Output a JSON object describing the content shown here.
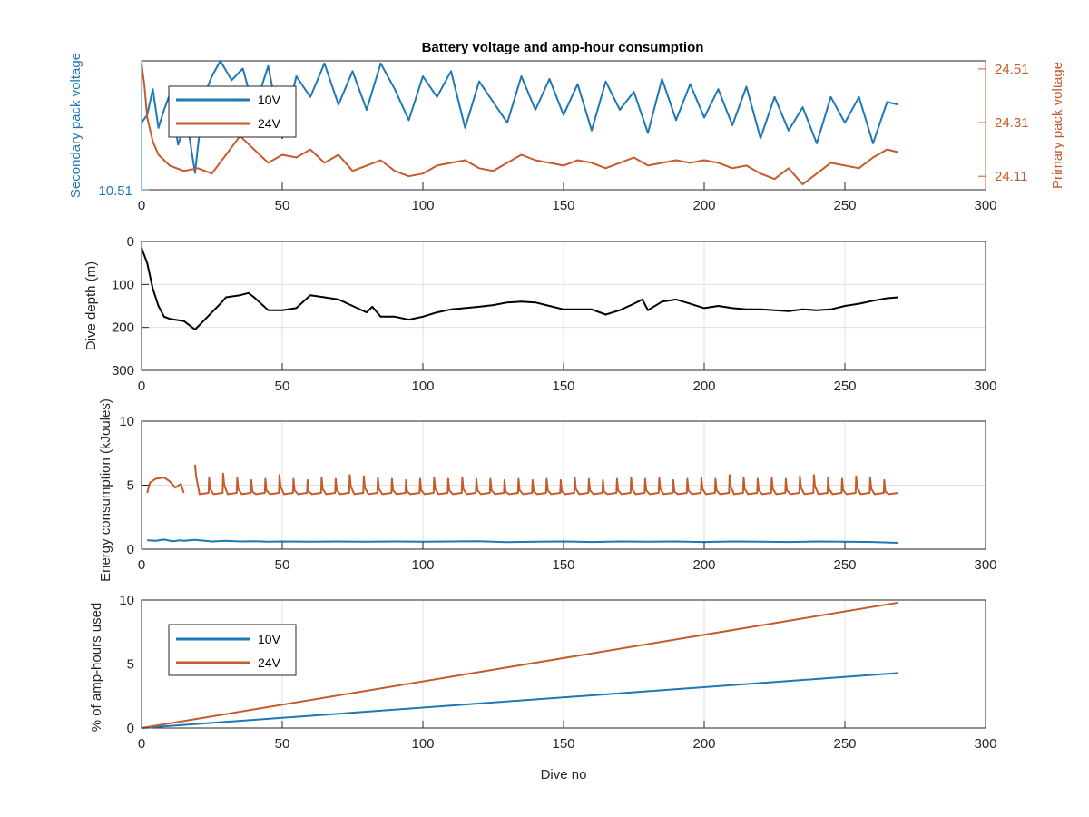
{
  "colors": {
    "series_10v": "#1f77b4",
    "series_24v": "#c55a2a",
    "depth": "#000000",
    "axis": "#262626",
    "grid": "#e0e0e0"
  },
  "xlabel_shared": "Dive no",
  "chart_data": [
    {
      "type": "line",
      "title": "Battery voltage and amp-hour consumption",
      "ylabel_left": "Secondary pack voltage",
      "ylabel_right": "Primary pack voltage",
      "xlim": [
        0,
        300
      ],
      "x_ticks": [
        "0",
        "50",
        "100",
        "150",
        "200",
        "250",
        "300"
      ],
      "y_left_ticks": [
        "10.51"
      ],
      "y_right_ticks": [
        "24.51",
        "24.31",
        "24.11"
      ],
      "legend": {
        "position": "top-left",
        "entries": [
          "10V",
          "24V"
        ]
      },
      "grid": false,
      "series": [
        {
          "name": "10V",
          "axis": "left",
          "x": [
            0,
            2,
            4,
            6,
            8,
            10,
            13,
            16,
            19,
            22,
            25,
            28,
            32,
            36,
            40,
            45,
            50,
            55,
            60,
            65,
            70,
            75,
            80,
            85,
            90,
            95,
            100,
            105,
            110,
            115,
            120,
            125,
            130,
            135,
            140,
            145,
            150,
            155,
            160,
            165,
            170,
            175,
            180,
            185,
            190,
            195,
            200,
            205,
            210,
            215,
            220,
            225,
            230,
            235,
            240,
            245,
            250,
            255,
            260,
            265,
            269
          ],
          "values": [
            0.52,
            0.58,
            0.78,
            0.48,
            0.62,
            0.74,
            0.35,
            0.55,
            0.13,
            0.72,
            0.88,
            1.0,
            0.85,
            0.94,
            0.62,
            0.96,
            0.4,
            0.88,
            0.72,
            0.98,
            0.66,
            0.92,
            0.62,
            0.98,
            0.78,
            0.54,
            0.88,
            0.72,
            0.92,
            0.48,
            0.84,
            0.68,
            0.52,
            0.88,
            0.62,
            0.86,
            0.58,
            0.82,
            0.46,
            0.84,
            0.62,
            0.76,
            0.44,
            0.86,
            0.54,
            0.82,
            0.56,
            0.78,
            0.5,
            0.8,
            0.4,
            0.72,
            0.46,
            0.64,
            0.36,
            0.72,
            0.52,
            0.72,
            0.36,
            0.68,
            0.66
          ]
        },
        {
          "name": "24V",
          "axis": "right",
          "x": [
            0,
            1,
            2,
            4,
            6,
            10,
            15,
            20,
            25,
            30,
            35,
            40,
            45,
            50,
            55,
            60,
            65,
            70,
            75,
            80,
            85,
            90,
            95,
            100,
            105,
            110,
            115,
            120,
            125,
            130,
            135,
            140,
            145,
            150,
            155,
            160,
            165,
            170,
            175,
            180,
            185,
            190,
            195,
            200,
            205,
            210,
            215,
            220,
            225,
            230,
            235,
            240,
            245,
            250,
            255,
            260,
            265,
            269
          ],
          "values": [
            24.53,
            24.45,
            24.33,
            24.24,
            24.19,
            24.15,
            24.13,
            24.14,
            24.12,
            24.19,
            24.26,
            24.21,
            24.16,
            24.19,
            24.18,
            24.21,
            24.16,
            24.19,
            24.13,
            24.15,
            24.17,
            24.13,
            24.11,
            24.12,
            24.15,
            24.16,
            24.17,
            24.14,
            24.13,
            24.16,
            24.19,
            24.17,
            24.16,
            24.15,
            24.17,
            24.16,
            24.14,
            24.16,
            24.18,
            24.15,
            24.16,
            24.17,
            24.16,
            24.17,
            24.16,
            24.14,
            24.15,
            24.12,
            24.1,
            24.14,
            24.08,
            24.12,
            24.16,
            24.15,
            24.14,
            24.18,
            24.21,
            24.2
          ]
        }
      ]
    },
    {
      "type": "line",
      "ylabel": "Dive depth (m)",
      "xlim": [
        0,
        300
      ],
      "ylim": [
        0,
        300
      ],
      "y_reversed": true,
      "x_ticks": [
        "0",
        "50",
        "100",
        "150",
        "200",
        "250",
        "300"
      ],
      "y_ticks": [
        "0",
        "100",
        "200",
        "300"
      ],
      "grid": true,
      "series": [
        {
          "x": [
            0,
            2,
            4,
            6,
            8,
            10,
            15,
            19,
            22,
            25,
            28,
            30,
            35,
            38,
            40,
            45,
            50,
            55,
            60,
            65,
            70,
            75,
            80,
            82,
            85,
            90,
            95,
            100,
            105,
            110,
            115,
            120,
            125,
            130,
            135,
            140,
            145,
            150,
            155,
            160,
            165,
            170,
            175,
            178,
            180,
            185,
            190,
            195,
            200,
            205,
            210,
            215,
            220,
            225,
            230,
            235,
            240,
            245,
            250,
            255,
            260,
            265,
            269
          ],
          "values": [
            15,
            50,
            110,
            150,
            175,
            180,
            185,
            205,
            185,
            165,
            145,
            130,
            125,
            120,
            130,
            160,
            160,
            155,
            125,
            130,
            135,
            150,
            165,
            152,
            175,
            175,
            182,
            175,
            165,
            158,
            155,
            152,
            148,
            142,
            140,
            142,
            150,
            158,
            158,
            158,
            170,
            160,
            145,
            135,
            160,
            140,
            135,
            145,
            155,
            150,
            155,
            158,
            158,
            160,
            162,
            158,
            160,
            158,
            150,
            145,
            138,
            132,
            130
          ]
        }
      ]
    },
    {
      "type": "line",
      "ylabel": "Energy consumption (kJoules)",
      "xlim": [
        0,
        300
      ],
      "ylim": [
        0,
        10
      ],
      "x_ticks": [
        "0",
        "50",
        "100",
        "150",
        "200",
        "250",
        "300"
      ],
      "y_ticks": [
        "0",
        "5",
        "10"
      ],
      "grid": true,
      "series": [
        {
          "name": "10V",
          "x": [
            2,
            5,
            8,
            11,
            14,
            15,
            19,
            25,
            30,
            35,
            40,
            45,
            50,
            60,
            70,
            80,
            90,
            100,
            110,
            120,
            130,
            140,
            150,
            160,
            170,
            180,
            190,
            200,
            210,
            220,
            230,
            240,
            250,
            260,
            269
          ],
          "values": [
            0.7,
            0.65,
            0.75,
            0.62,
            0.7,
            0.65,
            0.72,
            0.6,
            0.65,
            0.6,
            0.62,
            0.58,
            0.6,
            0.58,
            0.6,
            0.58,
            0.6,
            0.58,
            0.6,
            0.62,
            0.55,
            0.58,
            0.6,
            0.56,
            0.6,
            0.58,
            0.6,
            0.56,
            0.6,
            0.58,
            0.56,
            0.6,
            0.58,
            0.56,
            0.5
          ]
        },
        {
          "name": "24V",
          "x": [
            2,
            3,
            5,
            8,
            10,
            12,
            14,
            15
          ],
          "values": [
            4.4,
            5.2,
            5.5,
            5.6,
            5.3,
            4.8,
            5.1,
            4.4
          ],
          "spikes": {
            "start": 19,
            "end": 269,
            "period": 5,
            "base": 4.3,
            "peaks": [
              6.6,
              5.6,
              5.9,
              5.6,
              5.4,
              5.5,
              5.8,
              5.5,
              5.4,
              5.6,
              5.5,
              5.8,
              5.7,
              5.6,
              5.5,
              5.4,
              5.5,
              5.6,
              5.5,
              5.6,
              5.5,
              5.5,
              5.4,
              5.5,
              5.4,
              5.5,
              5.4,
              5.6,
              5.5,
              5.4,
              5.5,
              5.6,
              5.5,
              5.6,
              5.4,
              5.5,
              5.6,
              5.5,
              5.8,
              5.6,
              5.5,
              5.6,
              5.5,
              5.7,
              5.8,
              5.6,
              5.5,
              5.7,
              5.6,
              5.4
            ]
          }
        }
      ]
    },
    {
      "type": "line",
      "ylabel": "% of amp-hours used",
      "xlabel": "Dive no",
      "xlim": [
        0,
        300
      ],
      "ylim": [
        0,
        10
      ],
      "x_ticks": [
        "0",
        "50",
        "100",
        "150",
        "200",
        "250",
        "300"
      ],
      "y_ticks": [
        "0",
        "5",
        "10"
      ],
      "legend": {
        "position": "top-left",
        "entries": [
          "10V",
          "24V"
        ]
      },
      "grid": true,
      "series": [
        {
          "name": "10V",
          "x": [
            0,
            269
          ],
          "values": [
            0,
            4.3
          ]
        },
        {
          "name": "24V",
          "x": [
            0,
            269
          ],
          "values": [
            0,
            9.8
          ]
        }
      ]
    }
  ]
}
